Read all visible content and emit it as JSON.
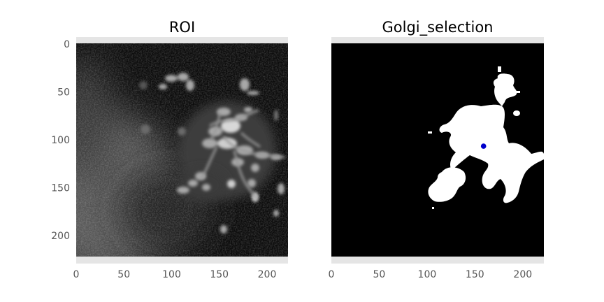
{
  "chart_data": [
    {
      "type": "heatmap",
      "title": "ROI",
      "colormap": "gray",
      "xlim": [
        0,
        222
      ],
      "ylim": [
        224,
        0
      ],
      "xticks": [
        0,
        50,
        100,
        150,
        200
      ],
      "yticks": [
        0,
        50,
        100,
        150,
        200
      ],
      "tick_labels_x": [
        "0",
        "50",
        "100",
        "150",
        "200"
      ],
      "tick_labels_y": [
        "0",
        "50",
        "100",
        "150",
        "200"
      ],
      "grid": false,
      "description": "grayscale fluorescence microscopy image with bright clustered structures"
    },
    {
      "type": "heatmap",
      "title": "Golgi_selection",
      "colormap": "binary",
      "xlim": [
        0,
        222
      ],
      "ylim": [
        224,
        0
      ],
      "xticks": [
        0,
        50,
        100,
        150,
        200
      ],
      "yticks": [
        0,
        50,
        100,
        150,
        200
      ],
      "tick_labels_x": [
        "0",
        "50",
        "100",
        "150",
        "200"
      ],
      "grid": false,
      "centroid": {
        "x": 159,
        "y": 108,
        "color": "#0000cc"
      },
      "description": "binary mask: white selected region on black background with blue centroid marker"
    }
  ],
  "colors": {
    "axes_bg": "#e5e5e5",
    "mask_fg": "#ffffff",
    "mask_bg": "#000000",
    "centroid": "#0000cc",
    "tick_text": "#555555"
  }
}
